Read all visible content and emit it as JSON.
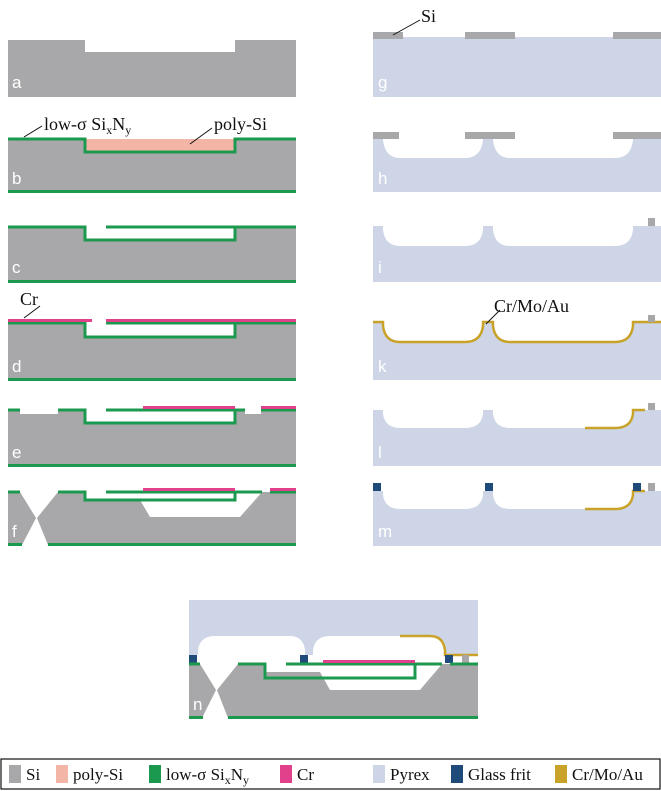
{
  "colors": {
    "si": "#a8a8aa",
    "poly_si": "#f3b5a6",
    "nitride": "#1b9a4f",
    "cr": "#e0418a",
    "pyrex": "#cdd5e6",
    "glass_frit": "#1f4b7a",
    "crmoau": "#c9a22a"
  },
  "steps": [
    "a",
    "b",
    "c",
    "d",
    "e",
    "f",
    "g",
    "h",
    "i",
    "k",
    "l",
    "m",
    "n"
  ],
  "callouts": {
    "si": "Si",
    "nitride_main": "low-σ Si",
    "nitride_x": "x",
    "nitride_n": "N",
    "nitride_y": "y",
    "poly_si": "poly-Si",
    "cr": "Cr",
    "crmoau": "Cr/Mo/Au"
  },
  "legend": {
    "si": "Si",
    "poly_si": "poly-Si",
    "nitride_main": "low-σ Si",
    "nitride_x": "x",
    "nitride_n": "N",
    "nitride_y": "y",
    "cr": "Cr",
    "pyrex": "Pyrex",
    "glass_frit": "Glass frit",
    "crmoau": "Cr/Mo/Au"
  }
}
